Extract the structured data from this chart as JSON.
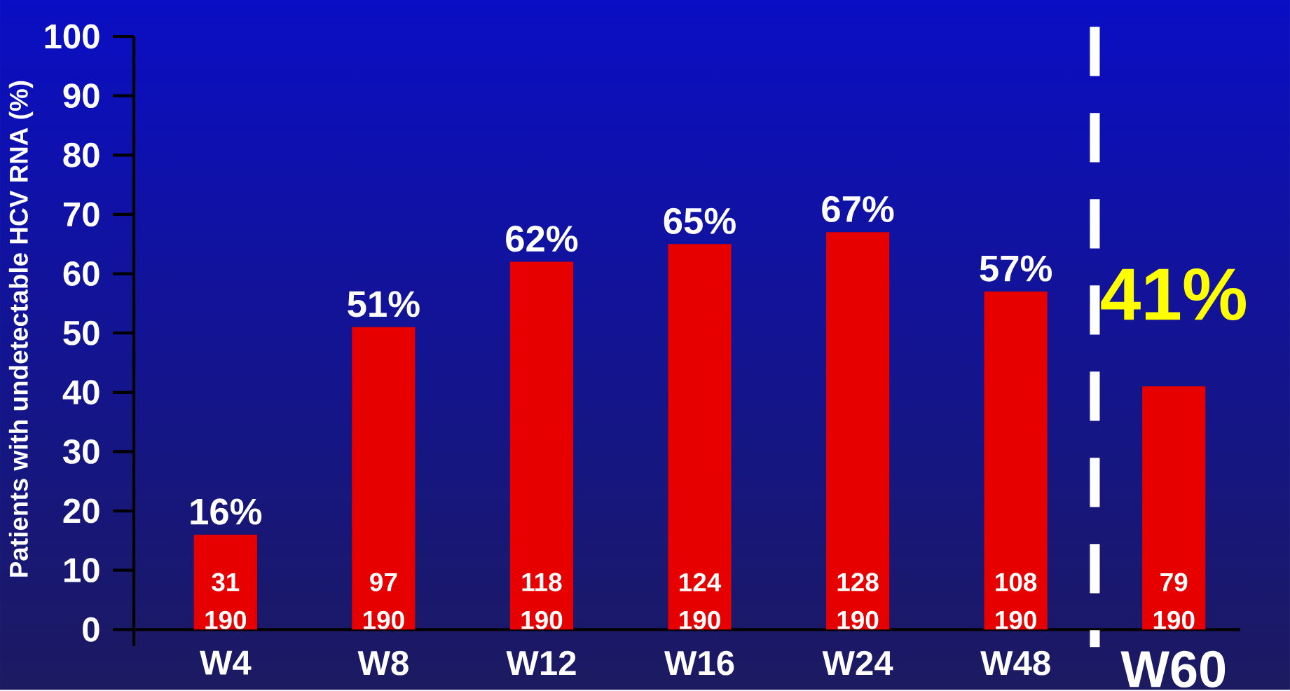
{
  "chart_data": {
    "type": "bar",
    "ylabel": "Patients with undetectable HCV RNA (%)",
    "categories": [
      "W4",
      "W8",
      "W12",
      "W16",
      "W24",
      "W48",
      "W60"
    ],
    "values": [
      16,
      51,
      62,
      65,
      67,
      57,
      41
    ],
    "value_labels": [
      "16%",
      "51%",
      "62%",
      "65%",
      "67%",
      "57%",
      "41%"
    ],
    "color": "#e60000",
    "ylim": [
      -2.8,
      100
    ],
    "yticks": [
      0,
      10,
      20,
      30,
      40,
      50,
      60,
      70,
      80,
      90,
      100
    ],
    "annotations": [
      "31",
      "190",
      "97",
      "190",
      "118",
      "190",
      "124",
      "190",
      "128",
      "190",
      "108",
      "190",
      "79",
      "190"
    ]
  }
}
